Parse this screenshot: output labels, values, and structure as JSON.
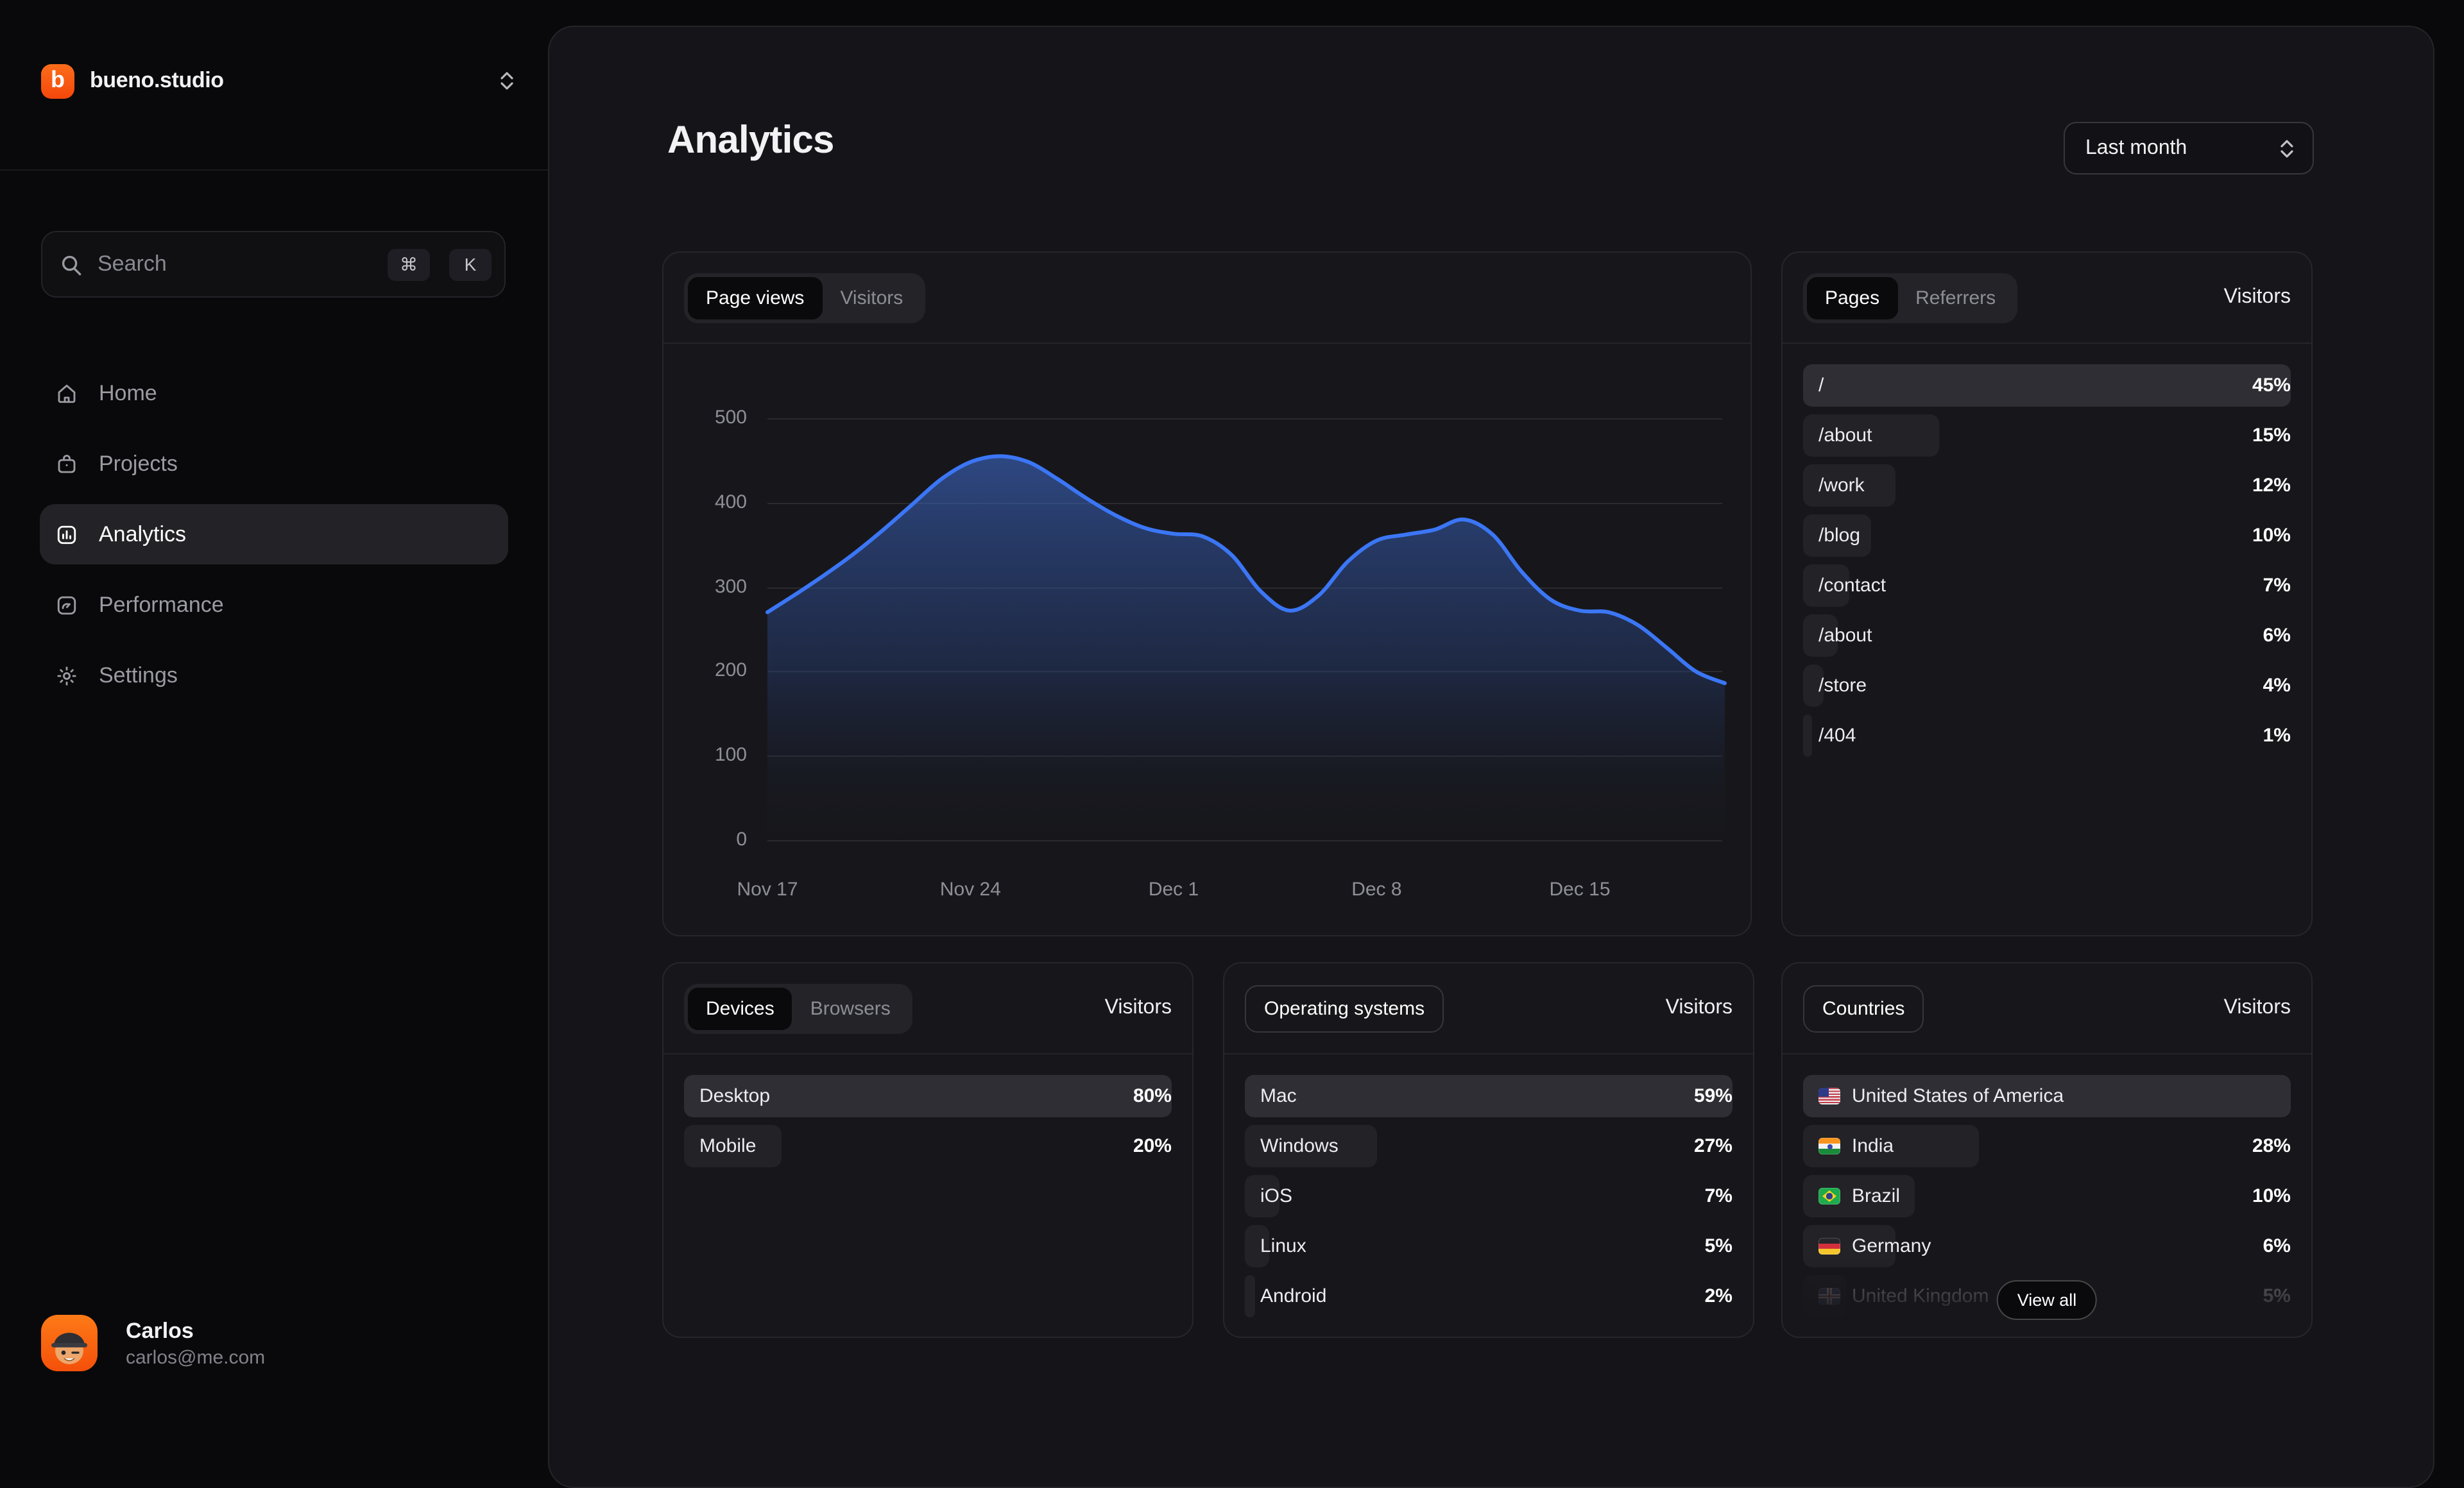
{
  "app": {
    "accent_orange": "#f95d07",
    "accent_blue": "#3b76f5"
  },
  "sidebar": {
    "logo": {
      "mark": "b",
      "text": "bueno.studio"
    },
    "search": {
      "placeholder": "Search",
      "shortcut_mod": "⌘",
      "shortcut_key": "K"
    },
    "items": [
      {
        "label": "Home",
        "icon": "home",
        "active": false
      },
      {
        "label": "Projects",
        "icon": "projects",
        "active": false
      },
      {
        "label": "Analytics",
        "icon": "analytics",
        "active": true
      },
      {
        "label": "Performance",
        "icon": "performance",
        "active": false
      },
      {
        "label": "Settings",
        "icon": "settings",
        "active": false
      }
    ],
    "user": {
      "name": "Carlos",
      "email": "carlos@me.com"
    }
  },
  "header": {
    "title": "Analytics",
    "range_select": "Last month"
  },
  "chart_card": {
    "tabs": [
      {
        "label": "Page views",
        "active": true
      },
      {
        "label": "Visitors",
        "active": false
      }
    ]
  },
  "chart_data": {
    "type": "area",
    "series_label": "Page views",
    "x": [
      "Nov 17",
      "Nov 18",
      "Nov 19",
      "Nov 20",
      "Nov 21",
      "Nov 22",
      "Nov 23",
      "Nov 24",
      "Nov 25",
      "Nov 26",
      "Nov 27",
      "Nov 28",
      "Nov 29",
      "Nov 30",
      "Dec 1",
      "Dec 2",
      "Dec 3",
      "Dec 4",
      "Dec 5",
      "Dec 6",
      "Dec 7",
      "Dec 8",
      "Dec 9",
      "Dec 10",
      "Dec 11",
      "Dec 12",
      "Dec 13",
      "Dec 14",
      "Dec 15",
      "Dec 16",
      "Dec 17",
      "Dec 18",
      "Dec 19",
      "Dec 20"
    ],
    "values": [
      270,
      292,
      315,
      340,
      368,
      398,
      428,
      448,
      455,
      448,
      428,
      405,
      385,
      370,
      363,
      360,
      338,
      295,
      272,
      290,
      330,
      355,
      362,
      368,
      380,
      362,
      318,
      285,
      272,
      270,
      255,
      228,
      200,
      186
    ],
    "x_ticks": [
      "Nov 17",
      "Nov 24",
      "Dec 1",
      "Dec 8",
      "Dec 15"
    ],
    "y_ticks": [
      "500",
      "400",
      "300",
      "200",
      "100",
      "0"
    ],
    "ylim": [
      0,
      500
    ],
    "grid": "horizontal",
    "legend": "none",
    "line_color": "#3b76f5"
  },
  "pages_card": {
    "tabs": [
      {
        "label": "Pages",
        "active": true
      },
      {
        "label": "Referrers",
        "active": false
      }
    ],
    "value_header": "Visitors",
    "rows": [
      {
        "label": "/",
        "value": "45%",
        "bar_pct": 100,
        "highlight": true
      },
      {
        "label": "/about",
        "value": "15%",
        "bar_pct": 28
      },
      {
        "label": "/work",
        "value": "12%",
        "bar_pct": 19
      },
      {
        "label": "/blog",
        "value": "10%",
        "bar_pct": 14
      },
      {
        "label": "/contact",
        "value": "7%",
        "bar_pct": 9.5
      },
      {
        "label": "/about",
        "value": "6%",
        "bar_pct": 7
      },
      {
        "label": "/store",
        "value": "4%",
        "bar_pct": 4.3
      },
      {
        "label": "/404",
        "value": "1%",
        "bar_pct": 1.8
      }
    ]
  },
  "devices_card": {
    "tabs": [
      {
        "label": "Devices",
        "active": true
      },
      {
        "label": "Browsers",
        "active": false
      }
    ],
    "value_header": "Visitors",
    "rows": [
      {
        "label": "Desktop",
        "value": "80%",
        "bar_pct": 100,
        "highlight": true
      },
      {
        "label": "Mobile",
        "value": "20%",
        "bar_pct": 20
      }
    ]
  },
  "os_card": {
    "tab": "Operating systems",
    "value_header": "Visitors",
    "rows": [
      {
        "label": "Mac",
        "value": "59%",
        "bar_pct": 100,
        "highlight": true
      },
      {
        "label": "Windows",
        "value": "27%",
        "bar_pct": 27
      },
      {
        "label": "iOS",
        "value": "7%",
        "bar_pct": 7
      },
      {
        "label": "Linux",
        "value": "5%",
        "bar_pct": 5
      },
      {
        "label": "Android",
        "value": "2%",
        "bar_pct": 2
      }
    ]
  },
  "countries_card": {
    "tab": "Countries",
    "value_header": "Visitors",
    "view_all": "View all",
    "rows": [
      {
        "label": "United States of America",
        "flag": "us",
        "value": "",
        "bar_pct": 100,
        "highlight": true
      },
      {
        "label": "India",
        "flag": "in",
        "value": "28%",
        "bar_pct": 36
      },
      {
        "label": "Brazil",
        "flag": "br",
        "value": "10%",
        "bar_pct": 23
      },
      {
        "label": "Germany",
        "flag": "de",
        "value": "6%",
        "bar_pct": 19
      },
      {
        "label": "United Kingdom",
        "flag": "gb",
        "value": "5%",
        "bar_pct": 9,
        "faded": true
      }
    ]
  }
}
